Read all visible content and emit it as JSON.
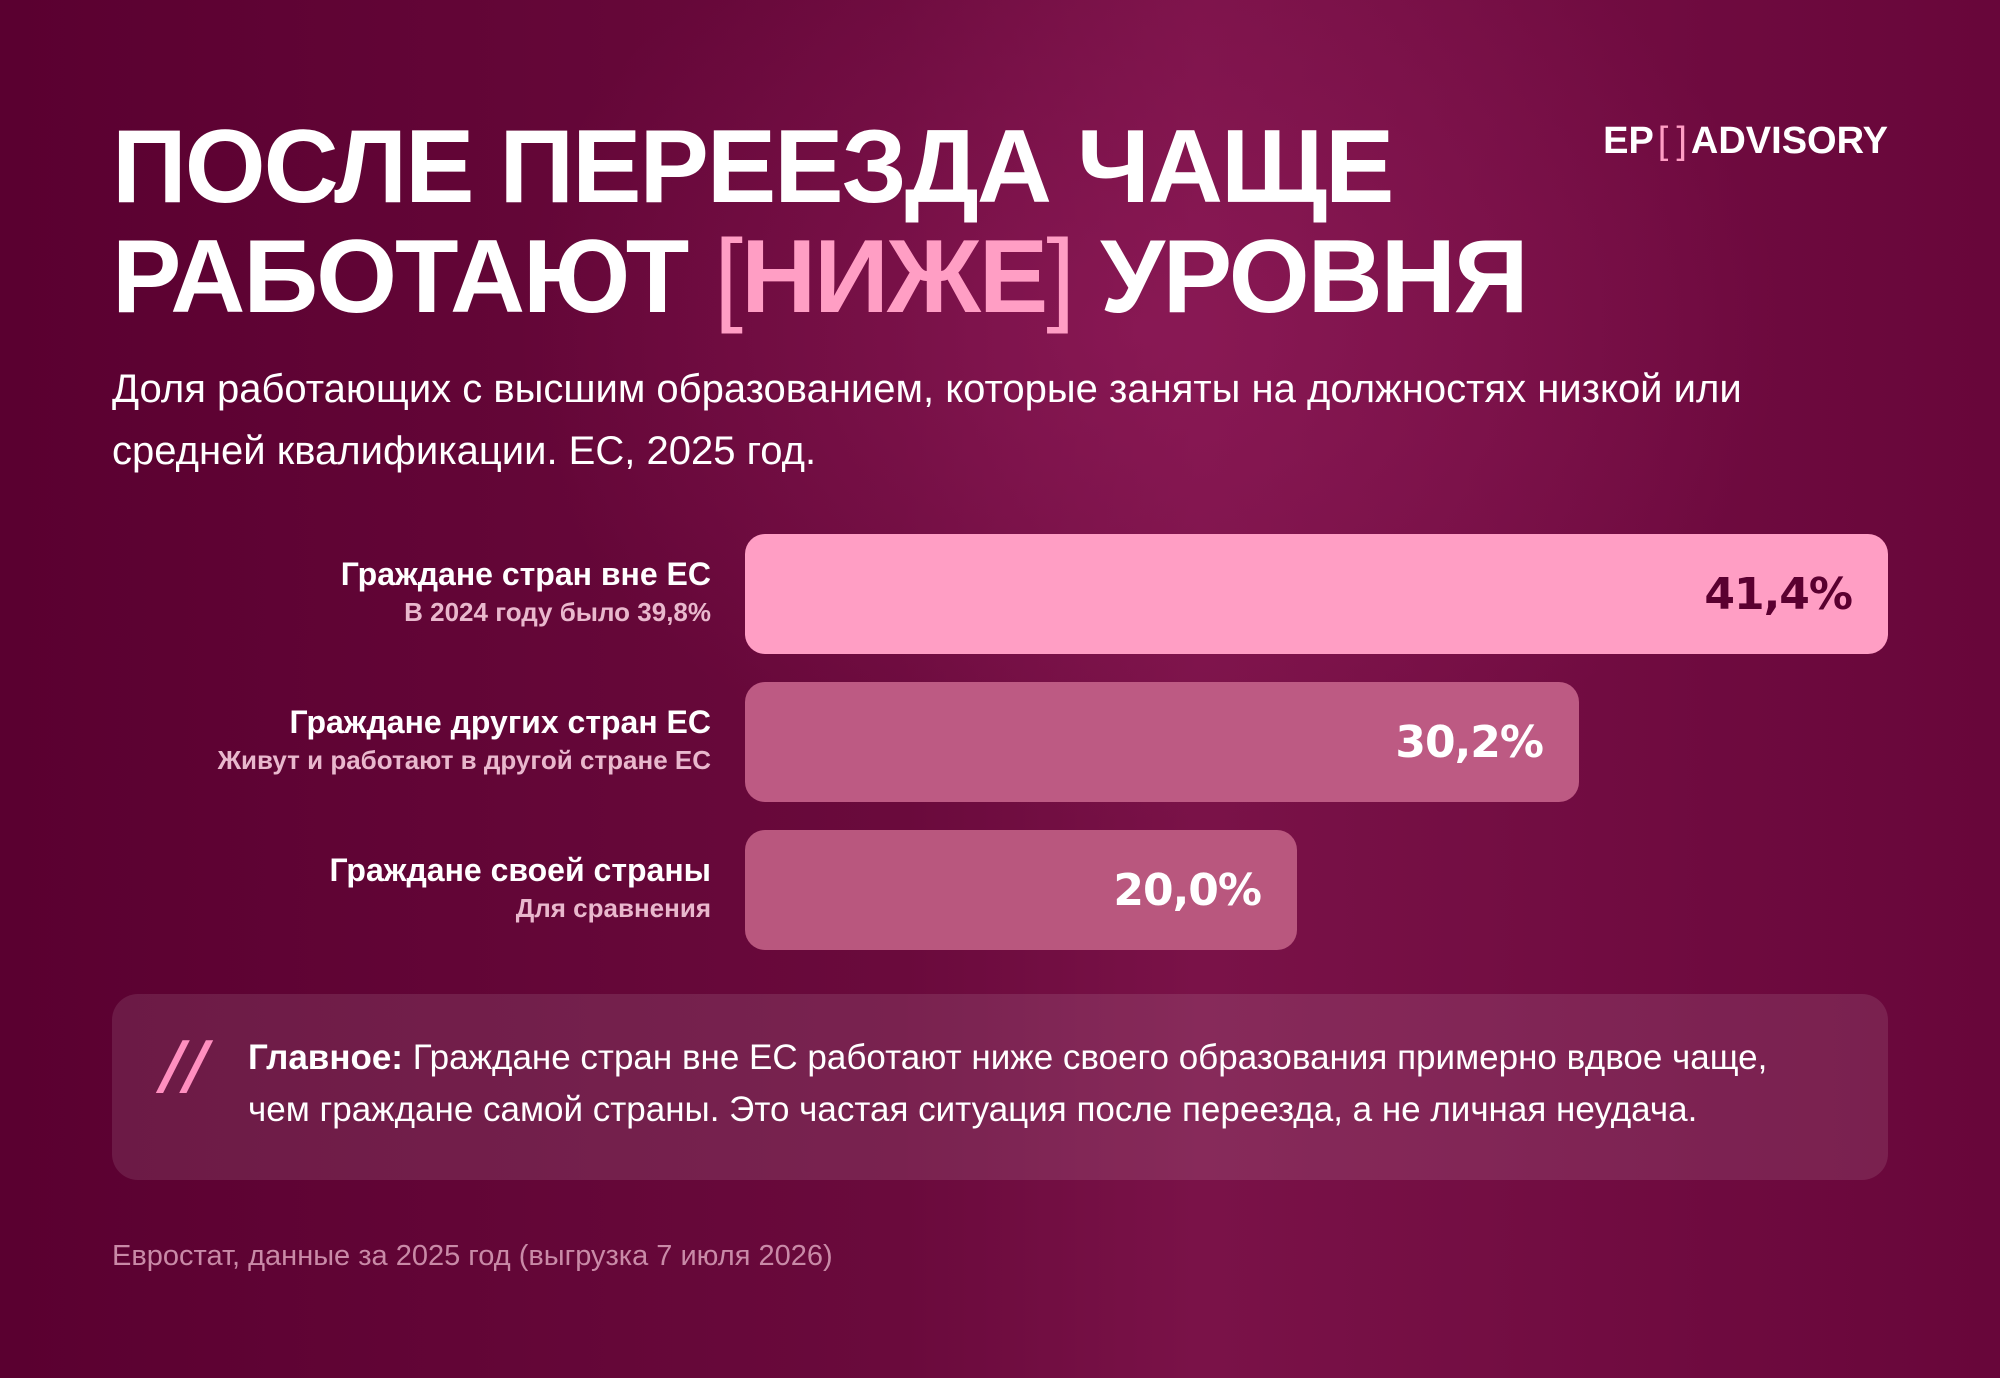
{
  "header": {
    "title_line1": "ПОСЛЕ ПЕРЕЕЗДА ЧАЩЕ",
    "title_line2_start": "РАБОТАЮТ",
    "title_highlight": "НИЖЕ",
    "title_line2_end": "УРОВНЯ",
    "bracket_open": "[",
    "bracket_close": "]",
    "subtitle": "Доля работающих с высшим образованием, которые заняты на должностях низкой или средней квалификации. ЕС, 2025 год."
  },
  "logo": {
    "left": "EP",
    "bracket_open": "[",
    "bracket_close": "]",
    "right": "ADVISORY"
  },
  "colors": {
    "background": "#6a0a3c",
    "accent_pink": "#ff9ec4",
    "bar_primary": "#ff9ec4",
    "bar_secondary": "#b9577e",
    "bar_value_dark": "#5a0030",
    "bar_value_light": "#ffffff"
  },
  "chart_data": {
    "type": "bar",
    "orientation": "horizontal",
    "title": "ПОСЛЕ ПЕРЕЕЗДА ЧАЩЕ РАБОТАЮТ [НИЖЕ] УРОВНЯ",
    "subtitle": "Доля работающих с высшим образованием, которые заняты на должностях низкой или средней квалификации. ЕС, 2025 год.",
    "xlim": [
      0,
      41.4
    ],
    "grid": false,
    "bars": [
      {
        "label": "Граждане стран вне ЕС",
        "note": "В 2024 году было 39,8%",
        "value": 41.4,
        "display": "41,4%",
        "color": "#ff9ec4",
        "text_color": "#5a0030"
      },
      {
        "label": "Граждане других стран ЕС",
        "note": "Живут и работают в другой стране ЕС",
        "value": 30.2,
        "display": "30,2%",
        "color": "#bd5a83",
        "text_color": "#ffffff"
      },
      {
        "label": "Граждане своей страны",
        "note": "Для сравнения",
        "value": 20.0,
        "display": "20,0%",
        "color": "#b9577e",
        "text_color": "#ffffff"
      }
    ]
  },
  "takeaway": {
    "quote_mark": "//",
    "lead": "Главное:",
    "text": " Граждане стран вне ЕС работают ниже своего образования примерно вдвое чаще, чем граждане самой страны. Это частая ситуация после переезда, а не личная неудача."
  },
  "footer": {
    "source": "Евростат, данные за 2025 год (выгрузка 7 июля 2026)"
  }
}
